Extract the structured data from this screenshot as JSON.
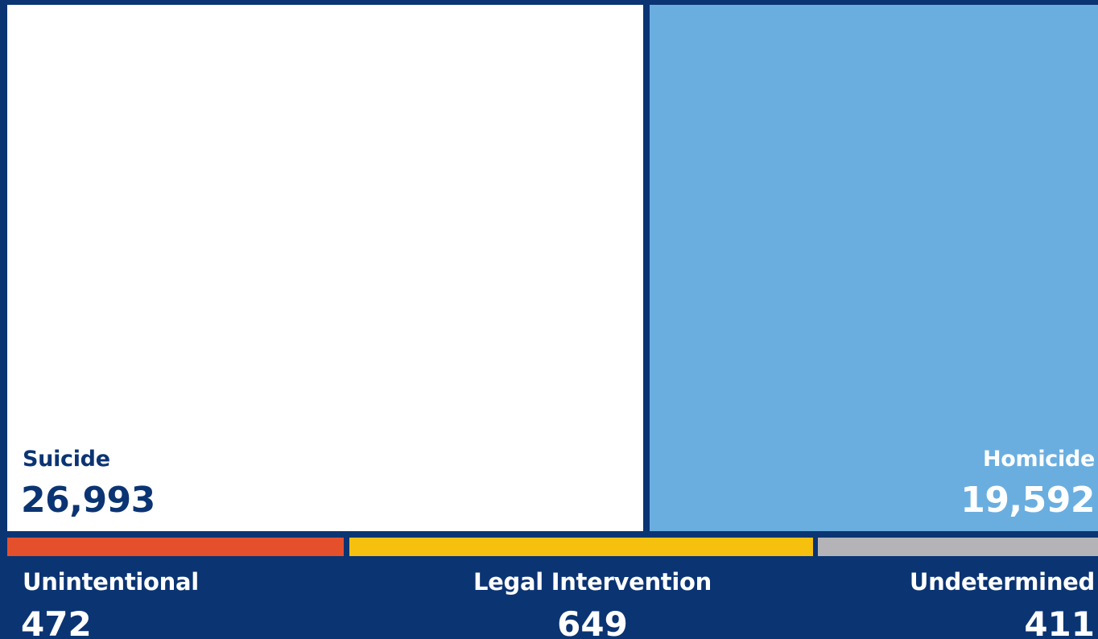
{
  "chart_data": {
    "type": "treemap",
    "categories": [
      "Suicide",
      "Homicide",
      "Unintentional",
      "Legal Intervention",
      "Undetermined"
    ],
    "values": [
      26993,
      19592,
      472,
      649,
      411
    ],
    "value_labels": [
      "26,993",
      "19,592",
      "472",
      "649",
      "411"
    ],
    "colors": [
      "#ffffff",
      "#6aaee0",
      "#e4502c",
      "#f5c10e",
      "#b4b4b8"
    ],
    "background": "#0b3473"
  }
}
